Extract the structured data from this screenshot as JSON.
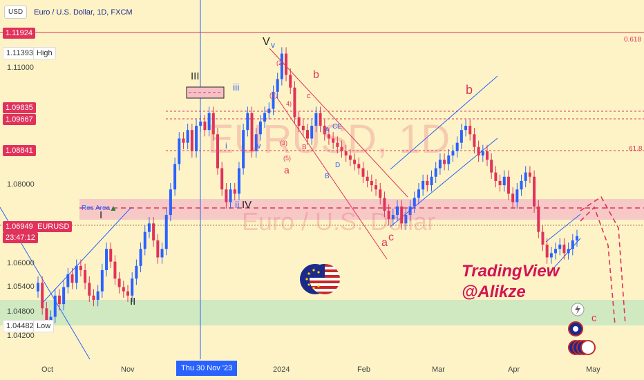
{
  "header": {
    "currency": "USD",
    "title": "Euro / U.S. Dollar, 1D, FXCM"
  },
  "price_scale": {
    "badges": [
      {
        "text": "1.11924",
        "style": "red"
      },
      {
        "text": "1.11393",
        "style": "white"
      },
      {
        "text": "High",
        "style": "white"
      },
      {
        "text": "1.09835",
        "style": "red"
      },
      {
        "text": "1.09667",
        "style": "red"
      },
      {
        "text": "1.08841",
        "style": "red"
      },
      {
        "text": "1.06949",
        "style": "red"
      },
      {
        "text": "EURUSD",
        "style": "red"
      },
      {
        "text": "23:47:12",
        "style": "red"
      },
      {
        "text": "1.04482",
        "style": "white"
      },
      {
        "text": "Low",
        "style": "white"
      }
    ],
    "labels": [
      "1.11000",
      "1.08000",
      "1.06000",
      "1.05400",
      "1.04800",
      "1.04200"
    ]
  },
  "time_axis": {
    "labels": [
      "Oct",
      "Nov",
      "2024",
      "Feb",
      "Mar",
      "Apr",
      "May"
    ],
    "crosshair": "Thu 30 Nov '23"
  },
  "fib_levels": [
    {
      "text": "0.618"
    },
    {
      "text": "61.8"
    }
  ],
  "zones": {
    "resistance_label": "Res Area"
  },
  "wave_labels": [
    {
      "text": "V",
      "color": "#222"
    },
    {
      "text": "v",
      "color": "#2962ff"
    },
    {
      "text": "III",
      "color": "#222"
    },
    {
      "text": "iii",
      "color": "#2962ff"
    },
    {
      "text": "iv",
      "color": "#2962ff"
    },
    {
      "text": "i",
      "color": "#2962ff"
    },
    {
      "text": "ii",
      "color": "#2962ff"
    },
    {
      "text": "IV",
      "color": "#222"
    },
    {
      "text": "I",
      "color": "#222"
    },
    {
      "text": "II",
      "color": "#222"
    },
    {
      "text": "b",
      "color": "#e0325b"
    },
    {
      "text": "c",
      "color": "#e0325b"
    },
    {
      "text": "a",
      "color": "#e0325b"
    },
    {
      "text": "A",
      "color": "#2962ff"
    },
    {
      "text": "B",
      "color": "#2962ff"
    },
    {
      "text": "C",
      "color": "#2962ff"
    },
    {
      "text": "E",
      "color": "#2962ff"
    },
    {
      "text": "D",
      "color": "#2962ff"
    },
    {
      "text": "B",
      "color": "#e0325b"
    },
    {
      "text": "a",
      "color": "#e0325b"
    },
    {
      "text": "c",
      "color": "#e0325b"
    },
    {
      "text": "b",
      "color": "#e0325b"
    },
    {
      "text": "c",
      "color": "#e0325b"
    },
    {
      "text": "(2)",
      "color": "#e0325b"
    },
    {
      "text": "(1)",
      "color": "#e0325b"
    },
    {
      "text": "(3)",
      "color": "#e0325b"
    },
    {
      "text": "(5)",
      "color": "#e0325b"
    },
    {
      "text": "4)",
      "color": "#e0325b"
    }
  ],
  "watermark": {
    "large": "EURUSD, 1D",
    "small": "Euro / U.S. Dollar"
  },
  "branding": {
    "line1": "TradingView",
    "line2": "@Alikze"
  },
  "colors": {
    "background": "#fdf3c6",
    "bull": "#2962ff",
    "bear": "#e0325b",
    "support_zone": "#c8e6c0",
    "resistance_zone": "#f6c1c6"
  },
  "chart_data": {
    "type": "candlestick",
    "symbol": "EURUSD",
    "timeframe": "1D",
    "ylim": [
      1.04,
      1.123
    ],
    "y_ticks": [
      1.042,
      1.048,
      1.054,
      1.06,
      1.08,
      1.11
    ],
    "levels": [
      1.11924,
      1.09835,
      1.09667,
      1.08841,
      1.06949
    ],
    "support_zone": [
      1.0448,
      1.0505
    ],
    "resistance_zone": [
      1.0695,
      1.074
    ],
    "current_price": 1.06949,
    "high": 1.11393,
    "low": 1.04482,
    "close_series": [
      1.058,
      1.052,
      1.048,
      1.05,
      1.055,
      1.053,
      1.057,
      1.06,
      1.058,
      1.062,
      1.061,
      1.058,
      1.055,
      1.054,
      1.056,
      1.061,
      1.066,
      1.063,
      1.059,
      1.057,
      1.056,
      1.055,
      1.059,
      1.062,
      1.066,
      1.07,
      1.072,
      1.068,
      1.064,
      1.066,
      1.074,
      1.08,
      1.086,
      1.092,
      1.091,
      1.094,
      1.089,
      1.095,
      1.096,
      1.094,
      1.098,
      1.093,
      1.085,
      1.08,
      1.077,
      1.08,
      1.079,
      1.085,
      1.094,
      1.098,
      1.089,
      1.093,
      1.096,
      1.098,
      1.099,
      1.103,
      1.106,
      1.112,
      1.107,
      1.104,
      1.097,
      1.095,
      1.094,
      1.092,
      1.095,
      1.098,
      1.095,
      1.093,
      1.092,
      1.091,
      1.09,
      1.089,
      1.088,
      1.087,
      1.086,
      1.085,
      1.083,
      1.082,
      1.081,
      1.08,
      1.078,
      1.075,
      1.073,
      1.074,
      1.076,
      1.072,
      1.074,
      1.076,
      1.078,
      1.08,
      1.082,
      1.081,
      1.083,
      1.085,
      1.087,
      1.086,
      1.088,
      1.089,
      1.091,
      1.094,
      1.095,
      1.093,
      1.09,
      1.088,
      1.089,
      1.087,
      1.084,
      1.082,
      1.081,
      1.083,
      1.079,
      1.077,
      1.08,
      1.082,
      1.084,
      1.083,
      1.076,
      1.07,
      1.067,
      1.064,
      1.065,
      1.066,
      1.067,
      1.065,
      1.066,
      1.068,
      1.069
    ]
  }
}
